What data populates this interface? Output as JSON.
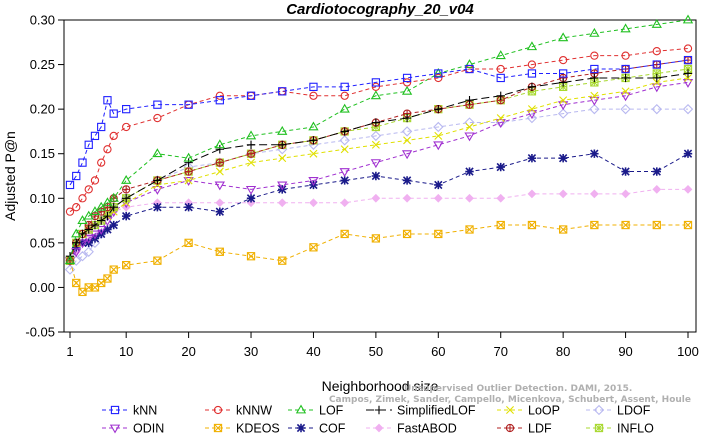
{
  "chart_data": {
    "type": "line",
    "title": "Cardiotocography_20_v04",
    "xlabel": "Neighborhood size",
    "ylabel": "Adjusted P@n",
    "xlim": [
      1,
      100
    ],
    "ylim": [
      -0.05,
      0.3
    ],
    "x_ticks": [
      1,
      10,
      20,
      30,
      40,
      50,
      60,
      70,
      80,
      90,
      100
    ],
    "y_ticks": [
      -0.05,
      0.0,
      0.05,
      0.1,
      0.15,
      0.2,
      0.25,
      0.3
    ],
    "grid": false,
    "legend_position": "bottom",
    "x_anchors": [
      1,
      2,
      3,
      4,
      5,
      6,
      7,
      8,
      10,
      15,
      20,
      25,
      30,
      35,
      40,
      45,
      50,
      55,
      60,
      65,
      70,
      75,
      80,
      85,
      90,
      95,
      100
    ],
    "series": [
      {
        "name": "kNN",
        "color": "#2020ff",
        "marker": "square",
        "dash": "4,3",
        "values": [
          0.115,
          0.125,
          0.14,
          0.16,
          0.17,
          0.18,
          0.21,
          0.195,
          0.2,
          0.205,
          0.205,
          0.21,
          0.215,
          0.22,
          0.225,
          0.225,
          0.23,
          0.235,
          0.24,
          0.245,
          0.235,
          0.24,
          0.24,
          0.245,
          0.245,
          0.25,
          0.255
        ]
      },
      {
        "name": "kNNW",
        "color": "#e03030",
        "marker": "circle",
        "dash": "4,3",
        "values": [
          0.085,
          0.09,
          0.1,
          0.11,
          0.12,
          0.14,
          0.155,
          0.17,
          0.18,
          0.19,
          0.205,
          0.215,
          0.215,
          0.22,
          0.215,
          0.215,
          0.225,
          0.23,
          0.235,
          0.245,
          0.245,
          0.25,
          0.255,
          0.26,
          0.26,
          0.265,
          0.268
        ]
      },
      {
        "name": "LOF",
        "color": "#20c020",
        "marker": "triangle",
        "dash": "4,3",
        "values": [
          0.03,
          0.06,
          0.075,
          0.08,
          0.085,
          0.09,
          0.095,
          0.1,
          0.12,
          0.15,
          0.145,
          0.16,
          0.17,
          0.175,
          0.18,
          0.2,
          0.215,
          0.22,
          0.24,
          0.25,
          0.26,
          0.27,
          0.28,
          0.285,
          0.29,
          0.295,
          0.3
        ]
      },
      {
        "name": "SimplifiedLOF",
        "color": "#000000",
        "marker": "plus",
        "dash": "8,4",
        "values": [
          0.035,
          0.05,
          0.06,
          0.065,
          0.07,
          0.075,
          0.08,
          0.09,
          0.1,
          0.12,
          0.14,
          0.155,
          0.16,
          0.16,
          0.165,
          0.175,
          0.185,
          0.19,
          0.2,
          0.21,
          0.215,
          0.225,
          0.23,
          0.235,
          0.235,
          0.235,
          0.24
        ]
      },
      {
        "name": "LoOP",
        "color": "#e0e000",
        "marker": "x",
        "dash": "4,3",
        "values": [
          0.03,
          0.05,
          0.06,
          0.065,
          0.07,
          0.075,
          0.08,
          0.085,
          0.095,
          0.115,
          0.12,
          0.13,
          0.14,
          0.145,
          0.15,
          0.155,
          0.16,
          0.165,
          0.17,
          0.18,
          0.19,
          0.2,
          0.21,
          0.215,
          0.22,
          0.23,
          0.235
        ]
      },
      {
        "name": "LDOF",
        "color": "#b8b8f0",
        "marker": "diamond",
        "dash": "4,3",
        "values": [
          0.02,
          0.03,
          0.035,
          0.04,
          0.05,
          0.06,
          0.08,
          0.09,
          0.1,
          0.12,
          0.135,
          0.14,
          0.15,
          0.155,
          0.16,
          0.165,
          0.17,
          0.175,
          0.18,
          0.185,
          0.185,
          0.19,
          0.195,
          0.2,
          0.2,
          0.2,
          0.2
        ]
      },
      {
        "name": "ODIN",
        "color": "#a030d0",
        "marker": "triangle-down",
        "dash": "4,3",
        "values": [
          0.03,
          0.04,
          0.05,
          0.055,
          0.06,
          0.065,
          0.075,
          0.085,
          0.095,
          0.11,
          0.12,
          0.115,
          0.11,
          0.115,
          0.12,
          0.13,
          0.14,
          0.15,
          0.16,
          0.17,
          0.185,
          0.195,
          0.205,
          0.21,
          0.215,
          0.225,
          0.23
        ]
      },
      {
        "name": "KDEOS",
        "color": "#f0b000",
        "marker": "square-x",
        "dash": "4,3",
        "values": [
          0.03,
          0.005,
          -0.005,
          0.0,
          0.0,
          0.005,
          0.01,
          0.02,
          0.025,
          0.03,
          0.05,
          0.04,
          0.035,
          0.03,
          0.045,
          0.06,
          0.055,
          0.06,
          0.06,
          0.065,
          0.07,
          0.07,
          0.065,
          0.07,
          0.07,
          0.07,
          0.07
        ]
      },
      {
        "name": "COF",
        "color": "#1a1a8a",
        "marker": "star",
        "dash": "4,3",
        "values": [
          0.03,
          0.045,
          0.05,
          0.05,
          0.055,
          0.06,
          0.065,
          0.07,
          0.08,
          0.09,
          0.09,
          0.085,
          0.1,
          0.11,
          0.115,
          0.12,
          0.125,
          0.12,
          0.115,
          0.13,
          0.135,
          0.145,
          0.145,
          0.15,
          0.13,
          0.13,
          0.15
        ]
      },
      {
        "name": "FastABOD",
        "color": "#f0b0f0",
        "marker": "diamond-filled",
        "dash": "4,3",
        "values": [
          0.03,
          0.04,
          0.05,
          0.06,
          0.07,
          0.075,
          0.08,
          0.085,
          0.09,
          0.095,
          0.095,
          0.095,
          0.095,
          0.095,
          0.095,
          0.095,
          0.1,
          0.1,
          0.1,
          0.1,
          0.1,
          0.105,
          0.105,
          0.105,
          0.105,
          0.11,
          0.11
        ]
      },
      {
        "name": "LDF",
        "color": "#b02020",
        "marker": "circle-plus",
        "dash": "4,3",
        "values": [
          0.03,
          0.05,
          0.06,
          0.07,
          0.08,
          0.085,
          0.09,
          0.1,
          0.11,
          0.12,
          0.13,
          0.14,
          0.15,
          0.16,
          0.165,
          0.175,
          0.185,
          0.195,
          0.2,
          0.205,
          0.21,
          0.225,
          0.235,
          0.24,
          0.245,
          0.25,
          0.255
        ]
      },
      {
        "name": "INFLO",
        "color": "#a8d830",
        "marker": "square-star",
        "dash": "4,3",
        "values": [
          0.03,
          0.05,
          0.06,
          0.065,
          0.07,
          0.075,
          0.085,
          0.09,
          0.1,
          0.12,
          0.13,
          0.14,
          0.15,
          0.16,
          0.165,
          0.175,
          0.18,
          0.19,
          0.2,
          0.205,
          0.21,
          0.22,
          0.225,
          0.23,
          0.235,
          0.24,
          0.245
        ]
      }
    ],
    "legend": [
      [
        "kNN",
        "kNNW",
        "LOF",
        "SimplifiedLOF",
        "LoOP",
        "LDOF"
      ],
      [
        "ODIN",
        "KDEOS",
        "COF",
        "FastABOD",
        "LDF",
        "INFLO"
      ]
    ],
    "watermark": [
      "Campos, Zimek, Sander, Campello, Micenkova, Schubert, Assent, Houle",
      "Unsupervised Outlier Detection. DAMI, 2015."
    ]
  }
}
